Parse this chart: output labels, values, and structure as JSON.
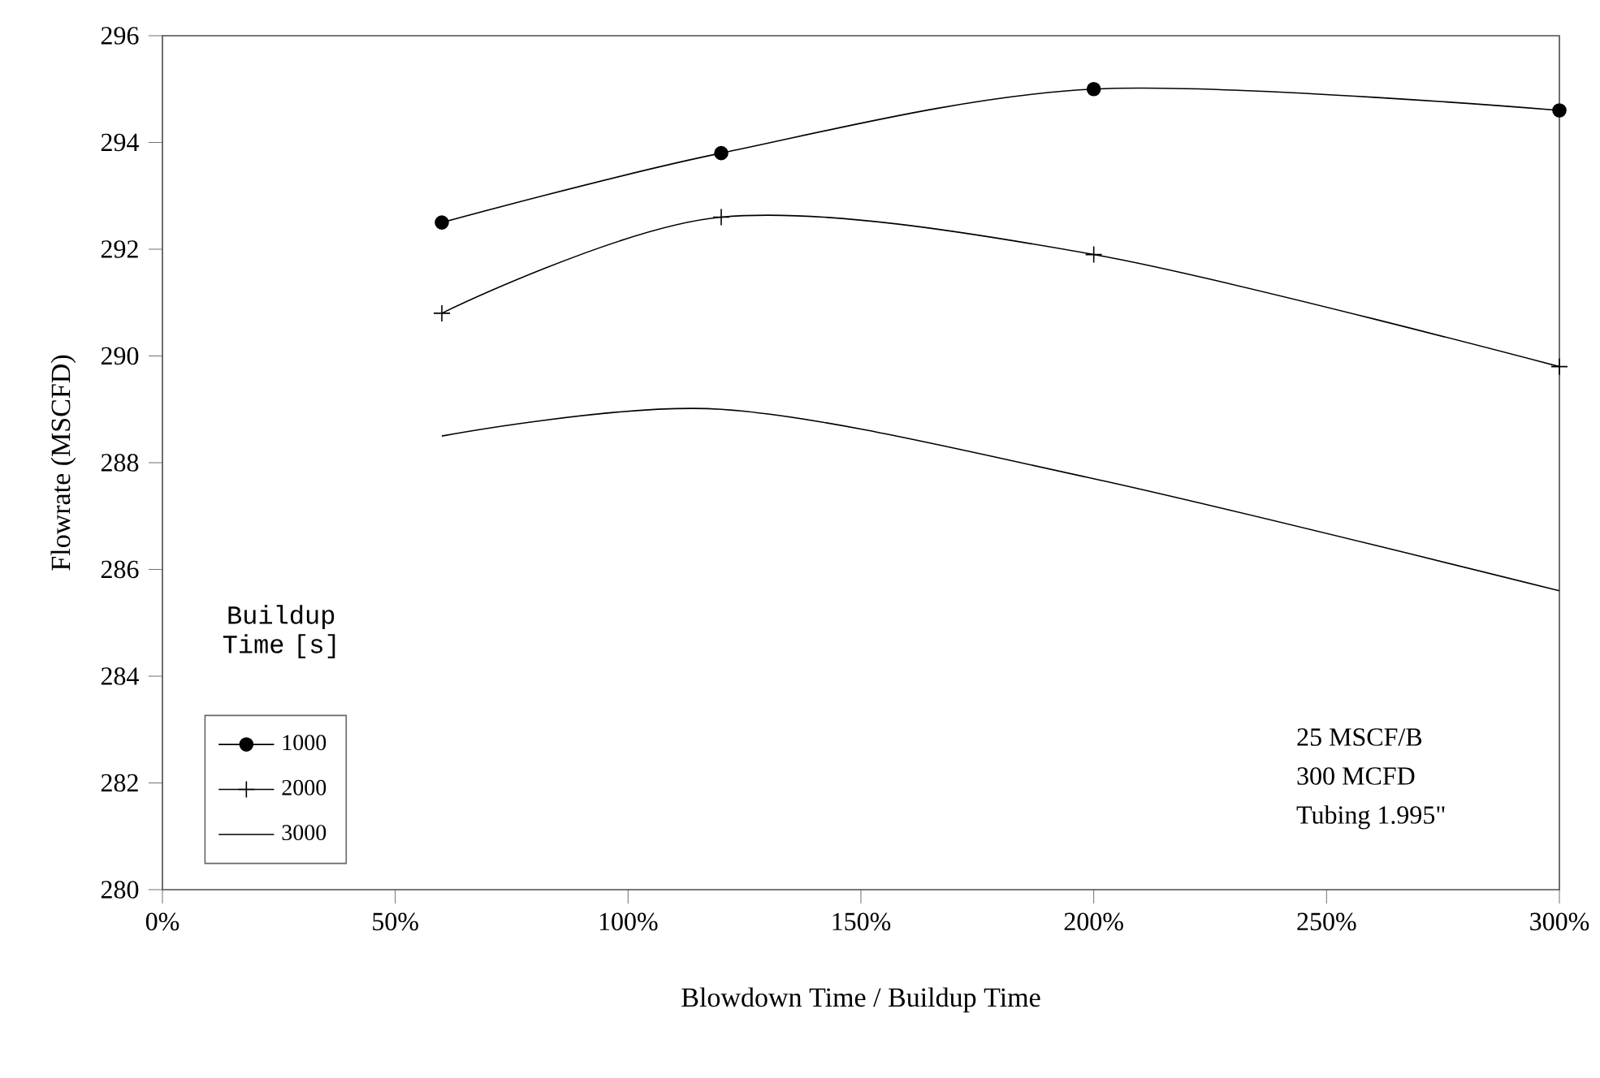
{
  "chart_data": {
    "type": "line",
    "xlabel": "Blowdown Time / Buildup Time",
    "ylabel": "Flowrate (MSCFD)",
    "legend_title": "Buildup Time [s]",
    "legend": "bottom left",
    "grid": false,
    "line_style": "solid",
    "xlim": [
      0,
      300
    ],
    "xticks": [
      {
        "value": 0,
        "label": "0%"
      },
      {
        "value": 50,
        "label": "50%"
      },
      {
        "value": 100,
        "label": "100%"
      },
      {
        "value": 150,
        "label": "150%"
      },
      {
        "value": 200,
        "label": "200%"
      },
      {
        "value": 250,
        "label": "250%"
      },
      {
        "value": 300,
        "label": "300%"
      }
    ],
    "ylim": [
      280,
      296
    ],
    "yticks": [
      280,
      282,
      284,
      286,
      288,
      290,
      292,
      294,
      296
    ],
    "x": [
      60,
      120,
      200,
      300
    ],
    "series": [
      {
        "name": "1000",
        "color": "#000000",
        "marker": "circle",
        "values": [
          292.5,
          293.8,
          295.0,
          294.6
        ]
      },
      {
        "name": "2000",
        "color": "#000000",
        "marker": "cross",
        "values": [
          290.8,
          292.6,
          291.9,
          289.8
        ]
      },
      {
        "name": "3000",
        "color": "#000000",
        "marker": "none",
        "values": [
          288.5,
          289.0,
          287.7,
          285.6
        ]
      }
    ],
    "annotations": [
      "25 MSCF/B",
      "300 MCFD",
      "Tubing 1.995\""
    ]
  }
}
